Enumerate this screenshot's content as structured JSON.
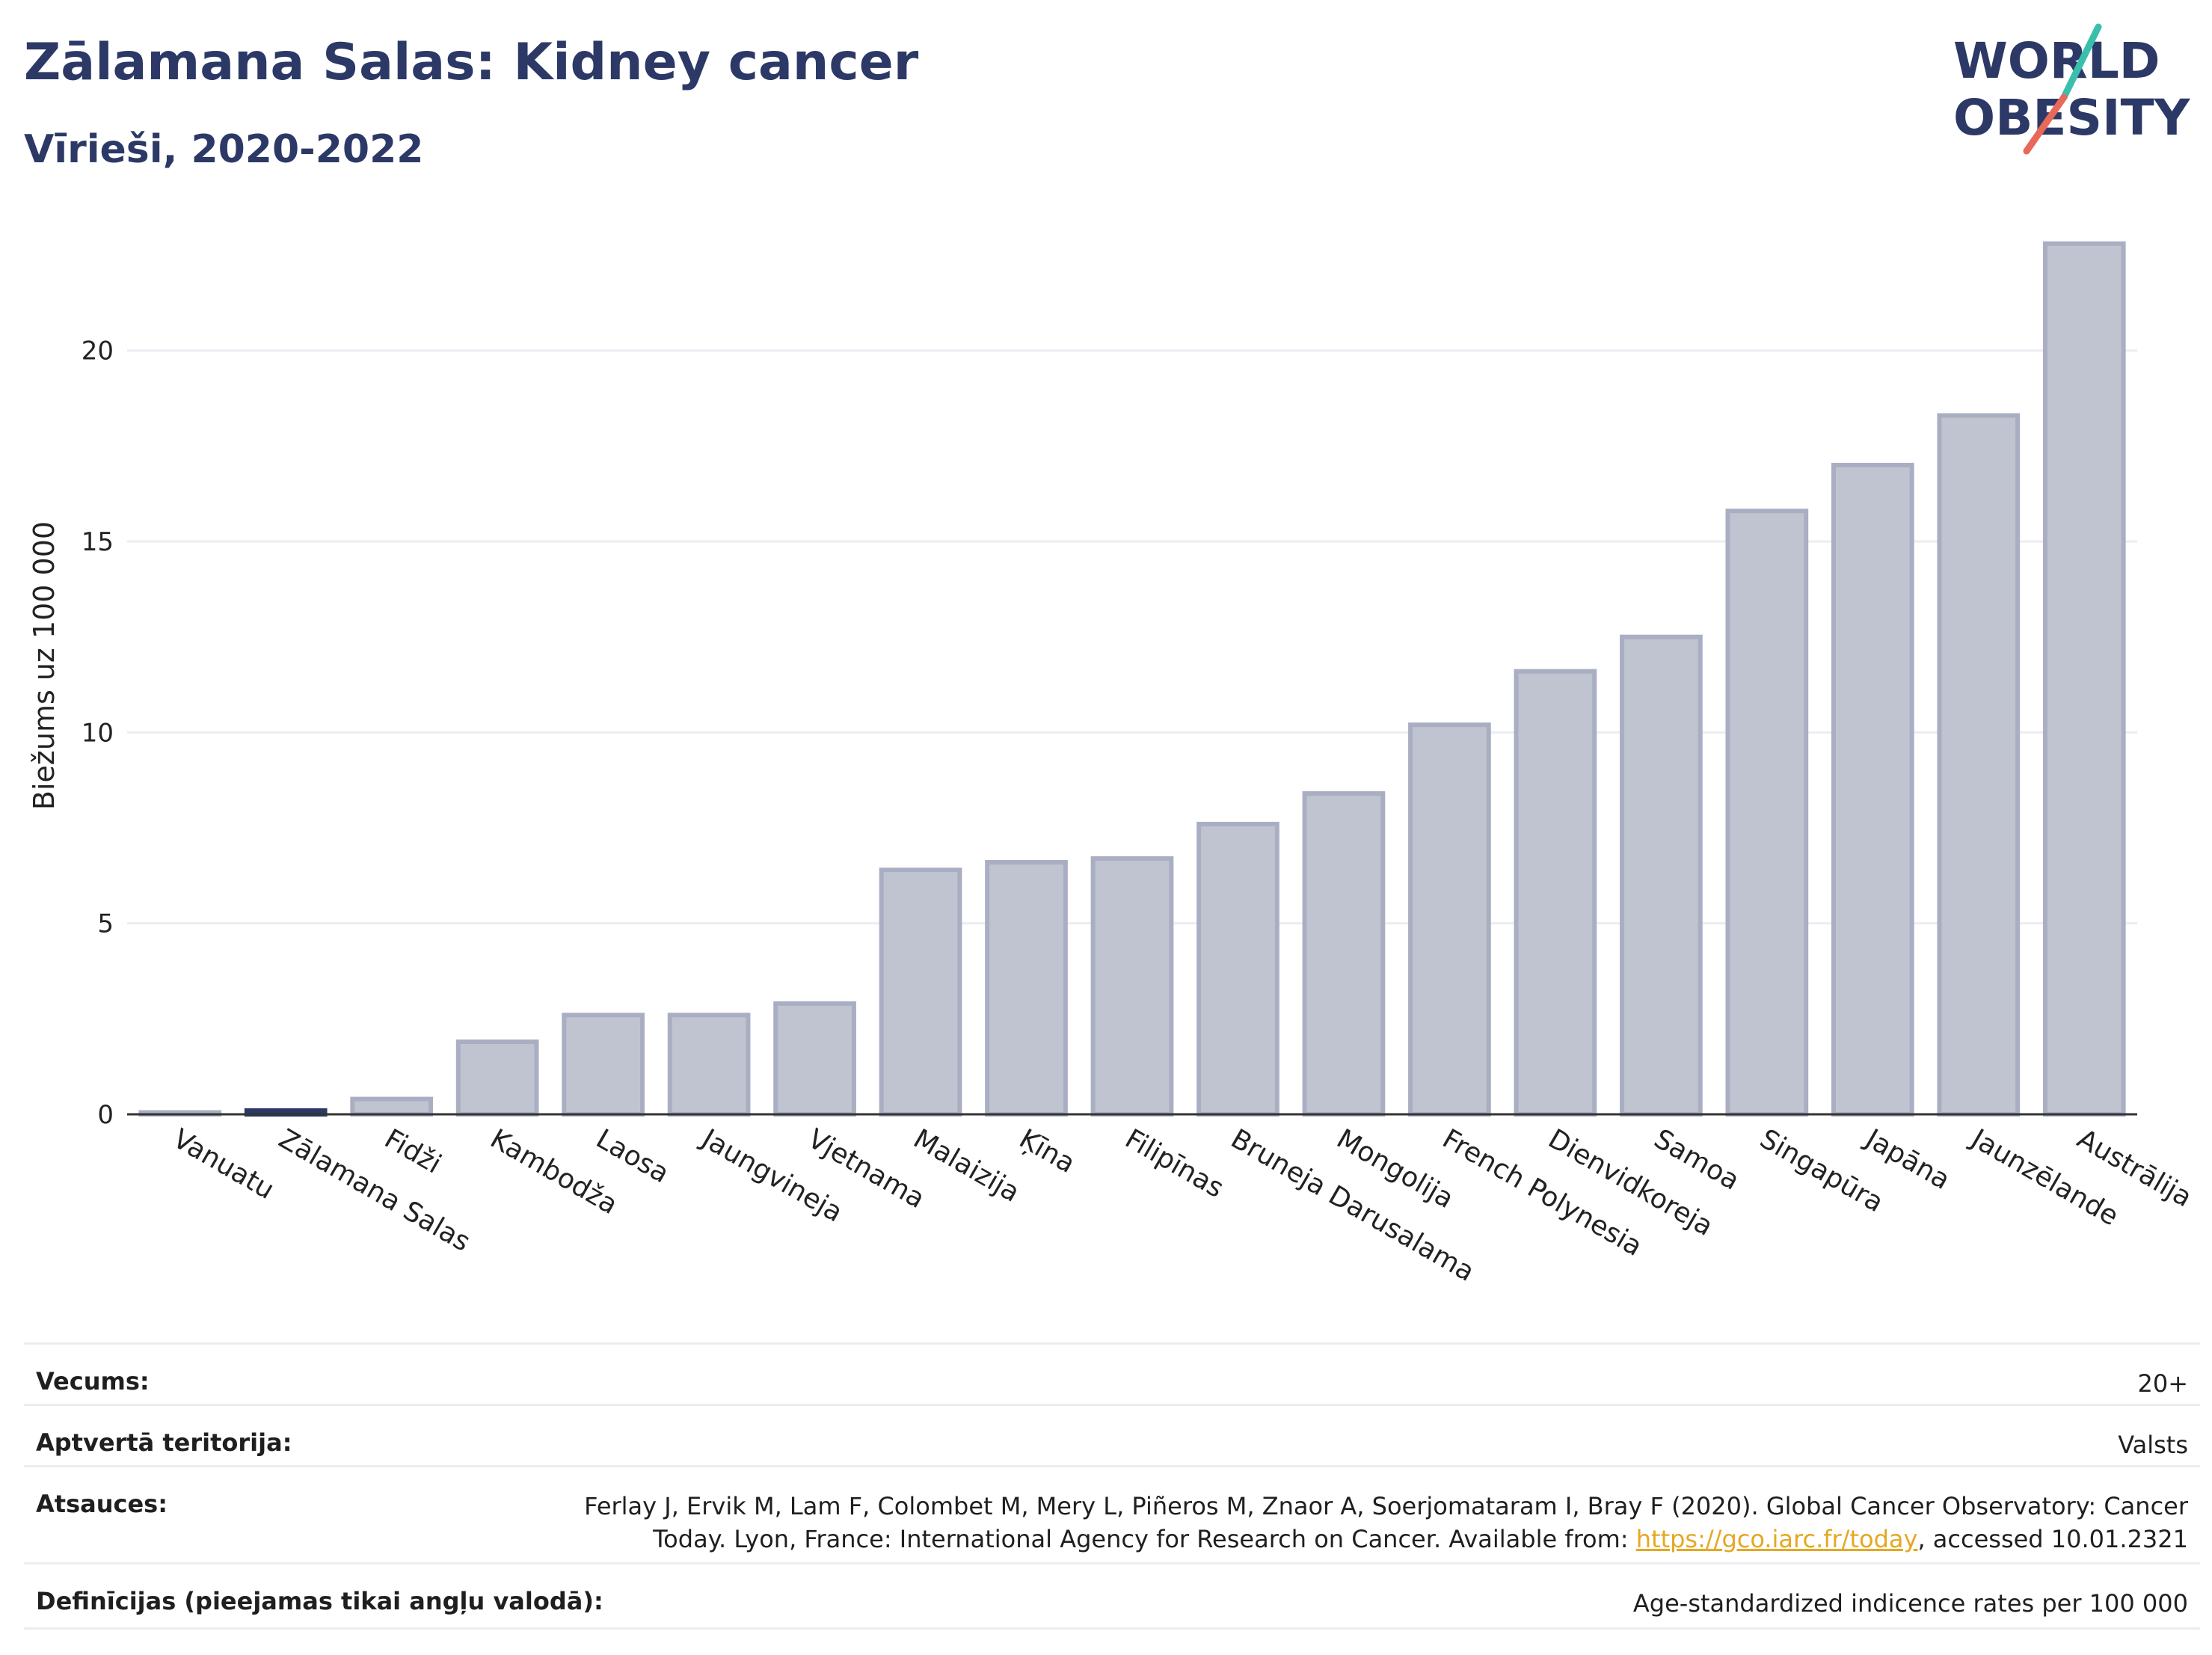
{
  "header": {
    "title": "Zālamana Salas: Kidney cancer",
    "subtitle": "Vīrieši, 2020-2022",
    "logo_text_line1": "WORLD",
    "logo_text_line2": "OBESITY"
  },
  "colors": {
    "title": "#2c3966",
    "bar_fill": "#c0c4d1",
    "bar_stroke": "#a9aec2",
    "highlight_bar": "#2c3966",
    "grid": "#ececf2",
    "link": "#e5a823",
    "logo_teal": "#3bbfad",
    "logo_red": "#e8685a"
  },
  "chart_data": {
    "type": "bar",
    "ylabel": "Biežums uz 100 000",
    "ylim": [
      0,
      23.5
    ],
    "yticks": [
      0,
      5,
      10,
      15,
      20
    ],
    "grid": true,
    "highlight": "Zālamana Salas",
    "categories": [
      "Vanuatu",
      "Zālamana Salas",
      "Fidži",
      "Kambodža",
      "Laosa",
      "Jaungvineja",
      "Vjetnama",
      "Malaizija",
      "Ķīna",
      "Filipīnas",
      "Bruneja Darusalama",
      "Mongolija",
      "French Polynesia",
      "Dienvidkoreja",
      "Samoa",
      "Singapūra",
      "Japāna",
      "Jaunzēlande",
      "Austrālija"
    ],
    "values": [
      0.05,
      0.1,
      0.4,
      1.9,
      2.6,
      2.6,
      2.9,
      6.4,
      6.6,
      6.7,
      7.6,
      8.4,
      10.2,
      11.6,
      12.5,
      15.8,
      17.0,
      18.3,
      22.8
    ]
  },
  "meta": {
    "age_label": "Vecums:",
    "age_value": "20+",
    "coverage_label": "Aptvertā teritorija:",
    "coverage_value": "Valsts",
    "refs_label": "Atsauces:",
    "refs_line1": "Ferlay J, Ervik M, Lam F, Colombet M, Mery L, Piñeros M, Znaor A, Soerjomataram I, Bray F (2020). Global Cancer Observatory: Cancer",
    "refs_line2_pre": "Today. Lyon, France: International Agency for Research on Cancer. Available from: ",
    "refs_link": "https://gco.iarc.fr/today",
    "refs_line2_post": ", accessed 10.01.2321",
    "defs_label": "Definīcijas (pieejamas tikai angļu valodā):",
    "defs_value": "Age-standardized indicence rates per 100 000"
  }
}
